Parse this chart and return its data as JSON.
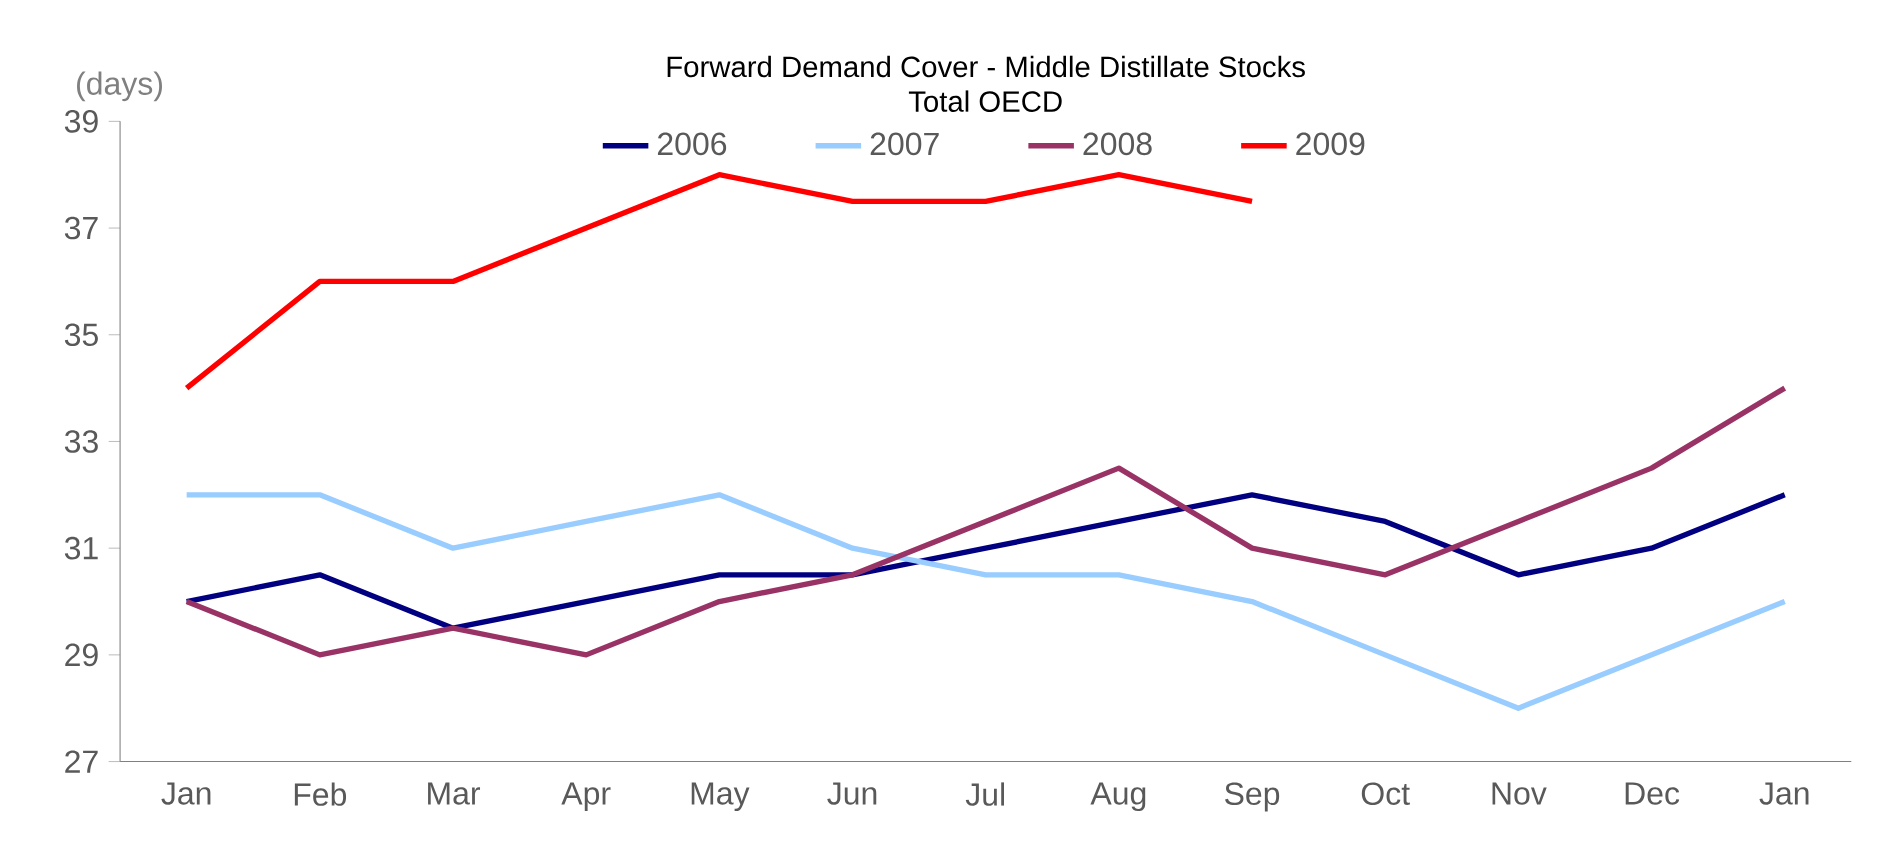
{
  "chart_data": {
    "type": "line",
    "title": "Forward Demand Cover - Middle Distillate Stocks",
    "subtitle": "Total OECD",
    "ylabel": "(days)",
    "categories": [
      "Jan",
      "Feb",
      "Mar",
      "Apr",
      "May",
      "Jun",
      "Jul",
      "Aug",
      "Sep",
      "Oct",
      "Nov",
      "Dec",
      "Jan"
    ],
    "series": [
      {
        "name": "2006",
        "color": "#000080",
        "values": [
          30,
          30.5,
          29.5,
          30,
          30.5,
          30.5,
          31,
          31.5,
          32,
          31.5,
          30.5,
          31,
          32
        ]
      },
      {
        "name": "2007",
        "color": "#99ccff",
        "values": [
          32,
          32,
          31,
          31.5,
          32,
          31,
          30.5,
          30.5,
          30,
          29,
          28,
          29,
          30
        ]
      },
      {
        "name": "2008",
        "color": "#993366",
        "values": [
          30,
          29,
          29.5,
          29,
          30,
          30.5,
          31.5,
          32.5,
          31,
          30.5,
          31.5,
          32.5,
          34
        ]
      },
      {
        "name": "2009",
        "color": "#ff0000",
        "values": [
          34,
          36,
          36,
          37,
          38,
          37.5,
          37.5,
          38,
          37.5,
          null,
          null,
          null,
          null
        ]
      }
    ],
    "ylim": [
      27,
      39
    ],
    "yticks": [
      27,
      29,
      31,
      33,
      35,
      37,
      39
    ],
    "legend": "top",
    "marker": "none",
    "line_style": "solid"
  }
}
